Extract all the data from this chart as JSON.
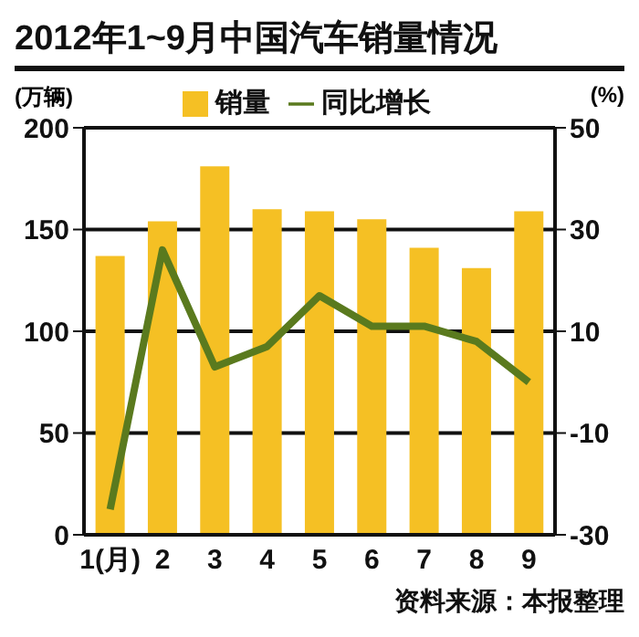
{
  "chart_data": {
    "type": "bar",
    "title": "2012年1~9月中国汽车销量情况",
    "ylabel": "(万辆)",
    "y2label": "(%)",
    "categories": [
      "1(月)",
      "2",
      "3",
      "4",
      "5",
      "6",
      "7",
      "8",
      "9"
    ],
    "series": [
      {
        "name": "销量",
        "color": "#f5c024",
        "values": [
          137,
          154,
          181,
          160,
          159,
          155,
          141,
          131,
          159
        ]
      },
      {
        "name": "同比增长",
        "type": "line",
        "axis": "y2",
        "color": "#5a7a1e",
        "values": [
          -25,
          26,
          3,
          7,
          17,
          11,
          11,
          8,
          0
        ]
      }
    ],
    "ylim": [
      0,
      200
    ],
    "yticks": [
      0,
      50,
      100,
      150,
      200
    ],
    "y2lim": [
      -30,
      50
    ],
    "y2ticks": [
      -30,
      -10,
      10,
      30,
      50
    ],
    "grid": "y",
    "legend": "top",
    "marker": "none",
    "line_style": "solid",
    "annotations": [
      "资料来源：本报整理"
    ]
  }
}
